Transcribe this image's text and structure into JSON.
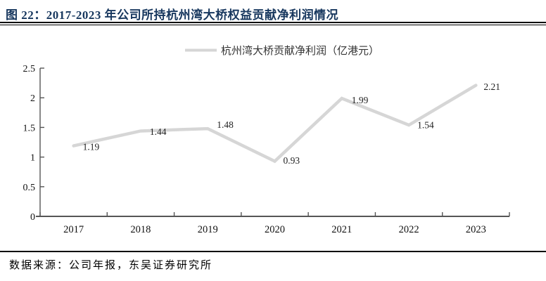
{
  "header": {
    "title": "图 22：2017-2023 年公司所持杭州湾大桥权益贡献净利润情况"
  },
  "chart_data": {
    "type": "line",
    "title": "",
    "legend": "杭州湾大桥贡献净利润（亿港元）",
    "legend_position": "top-center",
    "categories": [
      "2017",
      "2018",
      "2019",
      "2020",
      "2021",
      "2022",
      "2023"
    ],
    "series": [
      {
        "name": "杭州湾大桥贡献净利润（亿港元）",
        "values": [
          1.19,
          1.44,
          1.48,
          0.93,
          1.99,
          1.54,
          2.21
        ]
      }
    ],
    "data_labels": [
      "1.19",
      "1.44",
      "1.48",
      "0.93",
      "1.99",
      "1.54",
      "2.21"
    ],
    "xlabel": "",
    "ylabel": "",
    "ylim": [
      0,
      2.5
    ],
    "y_ticks": [
      0,
      0.5,
      1,
      1.5,
      2,
      2.5
    ],
    "y_tick_labels": [
      "0",
      "0.5",
      "1",
      "1.5",
      "2",
      "2.5"
    ],
    "grid": false,
    "line_color": "#d6d6d6",
    "axis_color": "#555555",
    "tick_label_color": "#111111",
    "data_label_color": "#1f1f1f"
  },
  "footer": {
    "source": "数据来源：公司年报，东吴证券研究所"
  },
  "colors": {
    "title": "#17375e",
    "rule": "#000000"
  }
}
